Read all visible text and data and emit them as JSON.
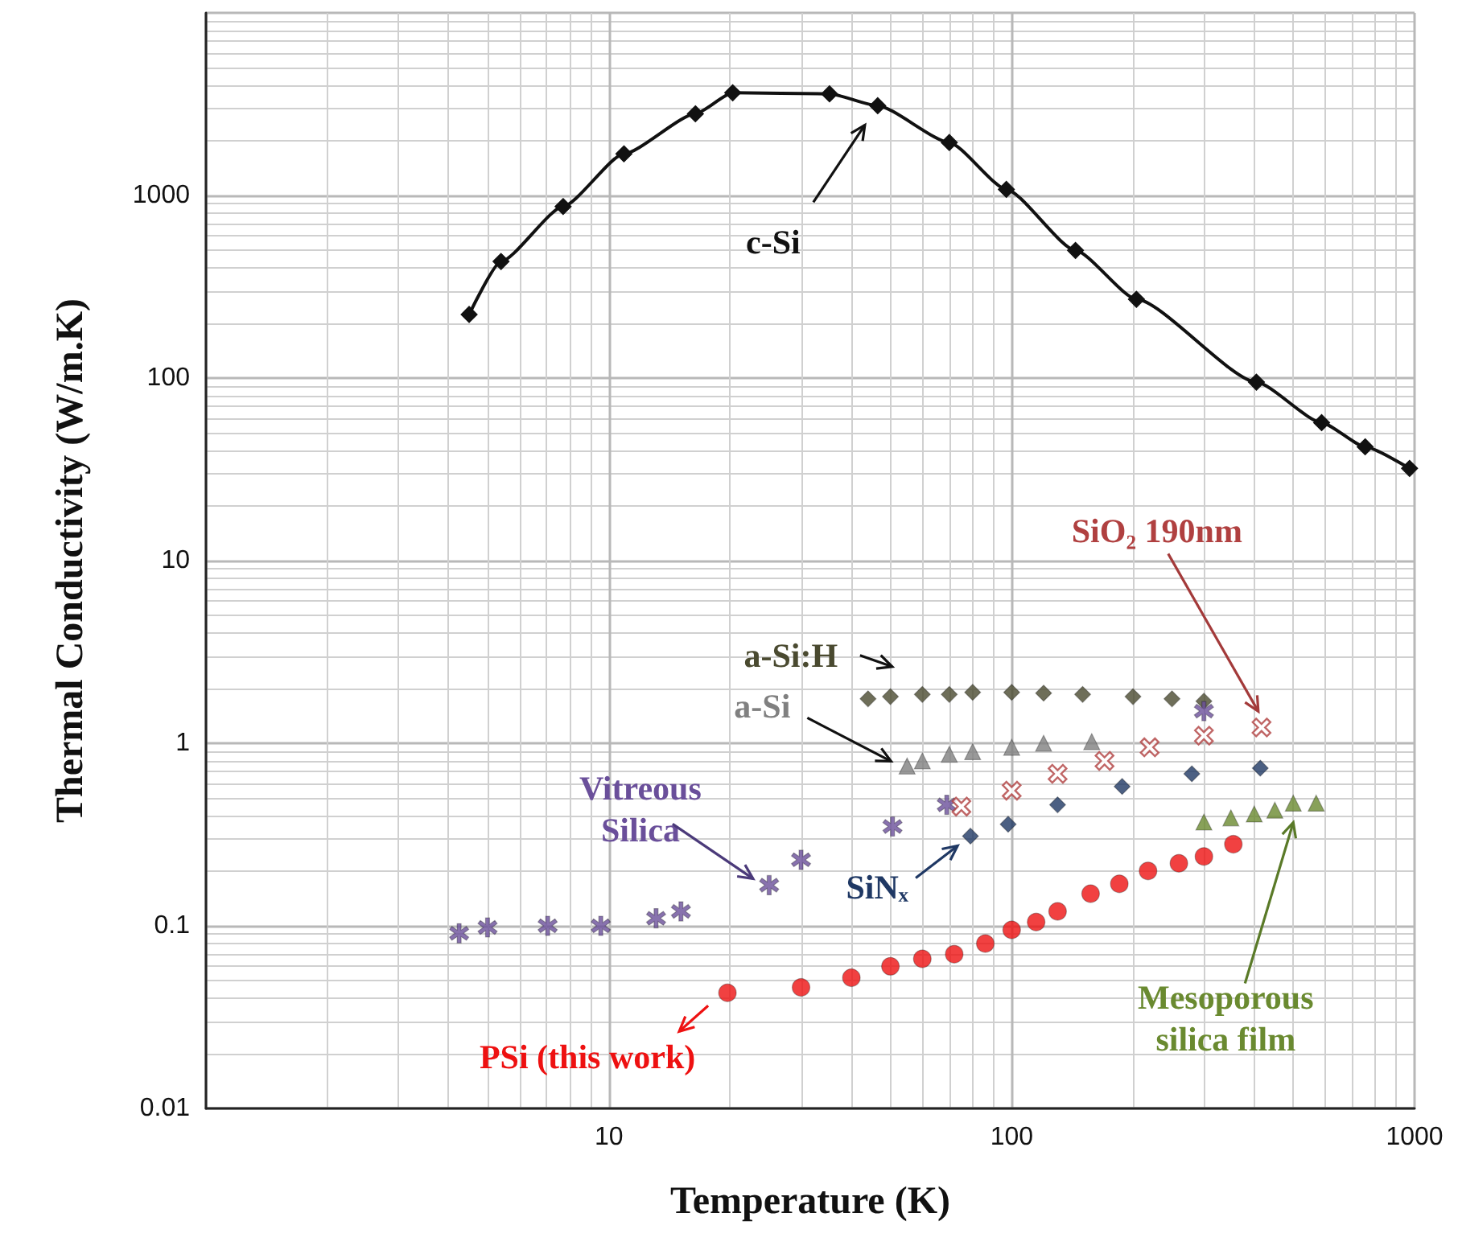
{
  "chart_data": {
    "type": "scatter",
    "xlabel": "Temperature (K)",
    "ylabel": "Thermal Conductivity (W/m.K)",
    "log": "xy",
    "grid": true,
    "legend": "bottom left",
    "xlim": [
      1,
      1000
    ],
    "xticks": [
      10,
      100,
      1000
    ],
    "ylim": [
      0.01,
      10000
    ],
    "yticks": [
      0.01,
      0.1,
      1,
      10,
      100,
      1000
    ],
    "series": [
      {
        "name": "c-Si",
        "type": "line",
        "marker": "diamond",
        "color": "#111111",
        "x": [
          4.5,
          5.4,
          7.7,
          10.9,
          16.4,
          20.3,
          35.3,
          46.5,
          70,
          97,
          144,
          204,
          405,
          588,
          754,
          972
        ],
        "values": [
          223,
          435,
          870,
          1690,
          2800,
          3650,
          3600,
          3100,
          1950,
          1080,
          500,
          270,
          95,
          57,
          42,
          32
        ]
      },
      {
        "name": "a-Si:H",
        "marker": "diamond",
        "color": "#4a4a30",
        "x": [
          44,
          50,
          60,
          70,
          80,
          100,
          120,
          150,
          200,
          250,
          300
        ],
        "values": [
          1.75,
          1.8,
          1.85,
          1.85,
          1.9,
          1.9,
          1.88,
          1.85,
          1.8,
          1.75,
          1.7
        ]
      },
      {
        "name": "a-Si",
        "marker": "triangle",
        "color": "#808080",
        "x": [
          55,
          60,
          70,
          80,
          100,
          120,
          158
        ],
        "values": [
          0.75,
          0.8,
          0.87,
          0.9,
          0.95,
          1.0,
          1.02
        ]
      },
      {
        "name": "Vitreous Silica",
        "marker": "star",
        "color": "#6a4f9a",
        "x": [
          4.25,
          5.0,
          7.05,
          9.55,
          13.1,
          15.1,
          25,
          30,
          50.6,
          69,
          300
        ],
        "values": [
          0.091,
          0.098,
          0.1,
          0.1,
          0.11,
          0.12,
          0.167,
          0.23,
          0.35,
          0.46,
          1.5
        ]
      },
      {
        "name": "SiNₓ",
        "marker": "diamond",
        "color": "#1f3864",
        "x": [
          79,
          98,
          130,
          188,
          280,
          414
        ],
        "values": [
          0.31,
          0.36,
          0.46,
          0.58,
          0.68,
          0.73
        ]
      },
      {
        "name": "SiO₂ 190nm",
        "marker": "cross",
        "color": "#b04040",
        "x": [
          75,
          100,
          130,
          170,
          220,
          300,
          417
        ],
        "values": [
          0.45,
          0.55,
          0.68,
          0.8,
          0.95,
          1.1,
          1.22
        ]
      },
      {
        "name": "Mesoporous silica film",
        "marker": "triangle",
        "color": "#6a8a30",
        "x": [
          300,
          350,
          400,
          450,
          500,
          570
        ],
        "values": [
          0.37,
          0.39,
          0.41,
          0.43,
          0.47,
          0.47
        ]
      },
      {
        "name": "PSi (this work)",
        "marker": "circle",
        "color": "#ee1111",
        "x": [
          19.7,
          30,
          40,
          50,
          60,
          72,
          86,
          100,
          115,
          130,
          157,
          185,
          218,
          260,
          300,
          355
        ],
        "values": [
          0.043,
          0.046,
          0.052,
          0.06,
          0.066,
          0.07,
          0.08,
          0.095,
          0.105,
          0.12,
          0.15,
          0.17,
          0.2,
          0.22,
          0.24,
          0.28
        ]
      }
    ]
  }
}
